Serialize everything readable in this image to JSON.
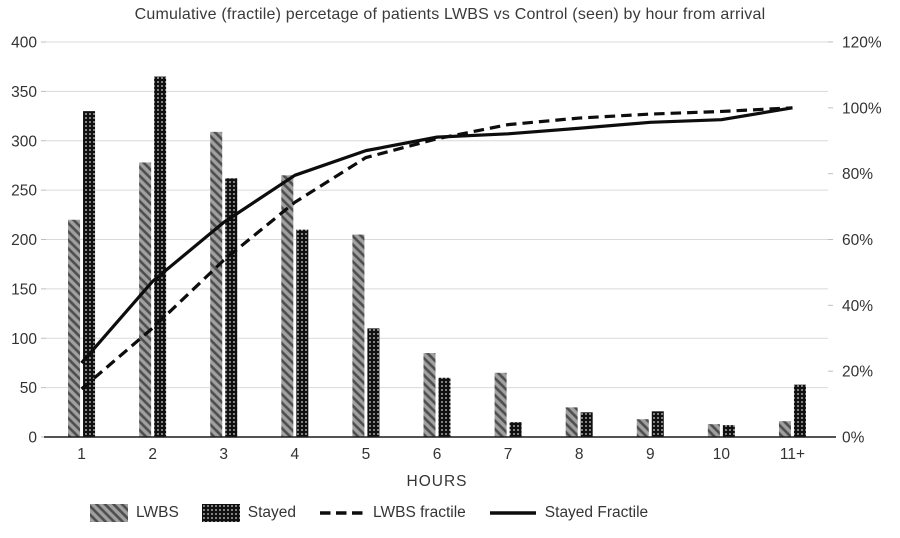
{
  "chart_data": {
    "type": "bar",
    "subtype": "clustered-bars-with-cumulative-lines",
    "title": "Cumulative (fractile) percetage of patients LWBS vs Control (seen) by hour from arrival",
    "xlabel": "HOURS",
    "categories": [
      "1",
      "2",
      "3",
      "4",
      "5",
      "6",
      "7",
      "8",
      "9",
      "10",
      "11+"
    ],
    "bar_series": [
      {
        "name": "LWBS",
        "pattern": "gray-diagonal-hatch",
        "axis": "left",
        "values": [
          220,
          278,
          309,
          265,
          205,
          85,
          65,
          30,
          18,
          13,
          16
        ]
      },
      {
        "name": "Stayed",
        "pattern": "black-dotted",
        "axis": "left",
        "values": [
          330,
          365,
          262,
          210,
          110,
          60,
          15,
          25,
          26,
          12,
          53
        ]
      }
    ],
    "line_series": [
      {
        "name": "LWBS fractile",
        "style": "dashed",
        "axis": "right",
        "values_pct": [
          14.6,
          33.1,
          53.7,
          71.3,
          84.9,
          90.6,
          94.9,
          96.9,
          98.1,
          98.9,
          100
        ]
      },
      {
        "name": "Stayed Fractile",
        "style": "solid",
        "axis": "right",
        "values_pct": [
          22.5,
          47.3,
          65.2,
          79.5,
          87.0,
          91.1,
          92.1,
          93.8,
          95.6,
          96.4,
          100
        ]
      }
    ],
    "left_axis": {
      "min": 0,
      "max": 400,
      "step": 50,
      "tick_labels": [
        "0",
        "50",
        "100",
        "150",
        "200",
        "250",
        "300",
        "350",
        "400"
      ]
    },
    "right_axis": {
      "min": 0,
      "max": 120,
      "step": 20,
      "tick_labels": [
        "0%",
        "20%",
        "40%",
        "60%",
        "80%",
        "100%",
        "120%"
      ]
    },
    "grid": true,
    "legend_position": "bottom-left",
    "colors": {
      "grid": "#d9d9d9",
      "axis_line": "#1a1a1a",
      "tick": "#bfbfbf",
      "text": "#333333",
      "bar_gray": "#a0a0a0",
      "bar_gray_stripe": "#4d4d4d",
      "bar_black": "#101010",
      "dot_white": "#ffffff",
      "line_black": "#0d0d0d",
      "background": "#ffffff"
    }
  }
}
